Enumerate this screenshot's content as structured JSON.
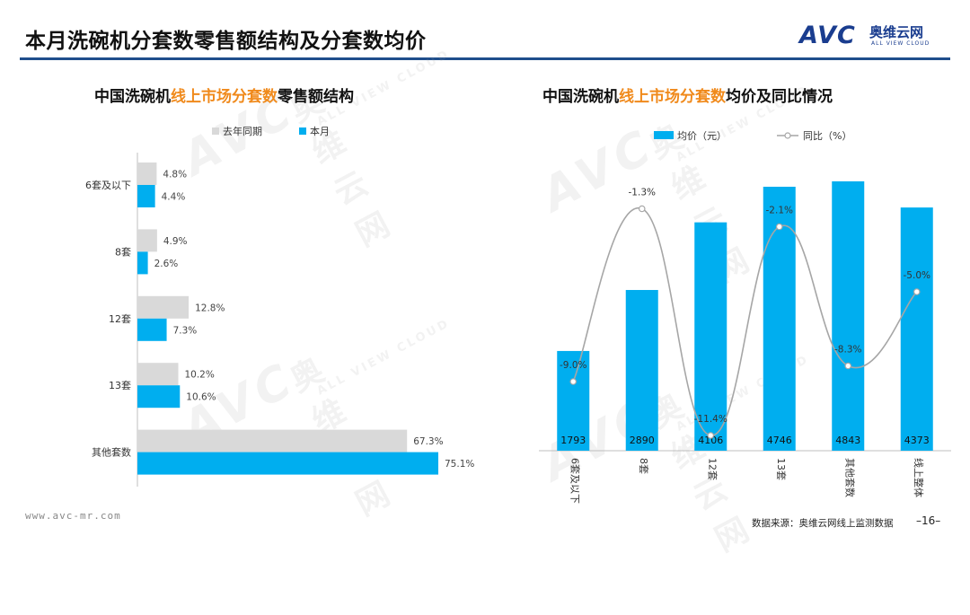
{
  "page": {
    "title": "本月洗碗机分套数零售额结构及分套数均价",
    "logo_text": "AVC",
    "logo_cn": "奥维云网",
    "logo_en": "ALL VIEW CLOUD",
    "footer_url": "www.avc-mr.com",
    "footer_source": "数据来源：奥维云网线上监测数据",
    "page_number": "–16–",
    "brand_color": "#1a3d8f",
    "accent_color": "#f08a1c"
  },
  "left_chart": {
    "title_part1": "中国洗碗机",
    "title_highlight": "线上市场分套数",
    "title_part2": "零售额结构"
  },
  "right_chart": {
    "title_part1": "中国洗碗机",
    "title_highlight": "线上市场分套数",
    "title_part2": "均价及同比情况"
  },
  "chart_data": [
    {
      "type": "bar",
      "orientation": "horizontal",
      "categories": [
        "6套及以下",
        "8套",
        "12套",
        "13套",
        "其他套数"
      ],
      "series": [
        {
          "name": "去年同期",
          "values": [
            4.8,
            4.9,
            12.8,
            10.2,
            67.3
          ],
          "labels": [
            "4.8%",
            "4.9%",
            "12.8%",
            "10.2%",
            "67.3%"
          ],
          "color": "#d9d9d9"
        },
        {
          "name": "本月",
          "values": [
            4.4,
            2.6,
            7.3,
            10.6,
            75.1
          ],
          "labels": [
            "4.4%",
            "2.6%",
            "7.3%",
            "10.6%",
            "75.1%"
          ],
          "color": "#00aeef"
        }
      ],
      "xlim": [
        0,
        80
      ],
      "legend": "top"
    },
    {
      "type": "bar",
      "categories": [
        "6套及以下",
        "8套",
        "12套",
        "13套",
        "其他套数",
        "线上整体"
      ],
      "series": [
        {
          "name": "均价（元）",
          "type": "bar",
          "values": [
            1793,
            2890,
            4106,
            4746,
            4843,
            4373
          ],
          "labels": [
            "1793",
            "2890",
            "4106",
            "4746",
            "4843",
            "4373"
          ],
          "color": "#00aeef"
        },
        {
          "name": "同比（%）",
          "type": "line",
          "values": [
            -9.0,
            -1.3,
            -11.4,
            -2.1,
            -8.3,
            -5.0
          ],
          "labels": [
            "-9.0%",
            "-1.3%",
            "-11.4%",
            "-2.1%",
            "-8.3%",
            "-5.0%"
          ],
          "color": "#a6a6a6"
        }
      ],
      "ylim_bar": [
        0,
        5300
      ],
      "ylim_line": [
        -14,
        0
      ],
      "legend": "top"
    }
  ]
}
